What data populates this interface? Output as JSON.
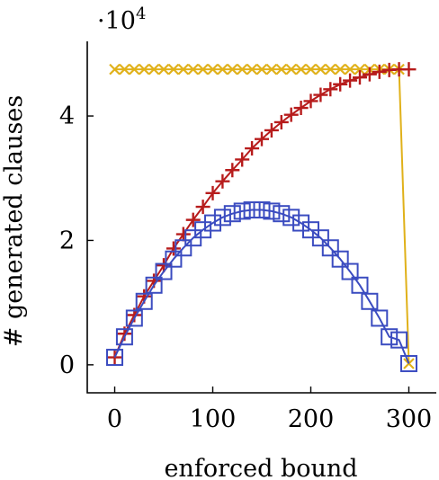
{
  "chart_data": {
    "type": "line",
    "title": "",
    "xlabel": "enforced bound",
    "ylabel": "# generated clauses",
    "y_scale_label": "·10",
    "y_scale_exponent": "4",
    "xlim": [
      -28,
      328
    ],
    "ylim": [
      -0.45,
      5.2
    ],
    "x_ticks": [
      0,
      100,
      200,
      300
    ],
    "y_ticks": [
      0,
      2,
      4
    ],
    "x_tick_labels": [
      "0",
      "100",
      "200",
      "300"
    ],
    "y_tick_labels": [
      "0",
      "2",
      "4"
    ],
    "grid": false,
    "legend": "none",
    "series": [
      {
        "color": "#e0b11a",
        "marker": "x",
        "x": [
          0,
          10,
          20,
          30,
          40,
          50,
          60,
          70,
          80,
          90,
          100,
          110,
          120,
          130,
          140,
          150,
          160,
          170,
          180,
          190,
          200,
          210,
          220,
          230,
          240,
          250,
          260,
          270,
          280,
          290,
          300
        ],
        "y": [
          4.75,
          4.75,
          4.75,
          4.75,
          4.75,
          4.75,
          4.75,
          4.75,
          4.75,
          4.75,
          4.75,
          4.75,
          4.75,
          4.75,
          4.75,
          4.75,
          4.75,
          4.75,
          4.75,
          4.75,
          4.75,
          4.75,
          4.75,
          4.75,
          4.75,
          4.75,
          4.75,
          4.75,
          4.75,
          4.75,
          0.02
        ]
      },
      {
        "color": "#b71c1c",
        "marker": "+",
        "x": [
          0,
          10,
          20,
          30,
          40,
          50,
          60,
          70,
          80,
          90,
          100,
          110,
          120,
          130,
          140,
          150,
          160,
          170,
          180,
          190,
          200,
          210,
          220,
          230,
          240,
          250,
          260,
          270,
          280,
          290,
          300
        ],
        "y": [
          0.12,
          0.5,
          0.8,
          1.1,
          1.35,
          1.6,
          1.87,
          2.1,
          2.33,
          2.54,
          2.76,
          2.95,
          3.13,
          3.3,
          3.48,
          3.63,
          3.77,
          3.9,
          4.02,
          4.13,
          4.24,
          4.34,
          4.43,
          4.51,
          4.57,
          4.62,
          4.67,
          4.71,
          4.74,
          4.75,
          4.75
        ]
      },
      {
        "color": "#3b4cc0",
        "marker": "square",
        "x": [
          0,
          10,
          20,
          30,
          40,
          50,
          60,
          70,
          80,
          90,
          100,
          110,
          120,
          130,
          140,
          150,
          160,
          170,
          180,
          190,
          200,
          210,
          220,
          230,
          240,
          250,
          260,
          270,
          280,
          290,
          300
        ],
        "y": [
          0.12,
          0.45,
          0.75,
          1.02,
          1.28,
          1.5,
          1.7,
          1.88,
          2.04,
          2.17,
          2.28,
          2.37,
          2.43,
          2.47,
          2.49,
          2.49,
          2.47,
          2.43,
          2.37,
          2.28,
          2.17,
          2.04,
          1.88,
          1.7,
          1.5,
          1.28,
          1.02,
          0.75,
          0.45,
          0.4,
          0.02
        ]
      }
    ]
  }
}
